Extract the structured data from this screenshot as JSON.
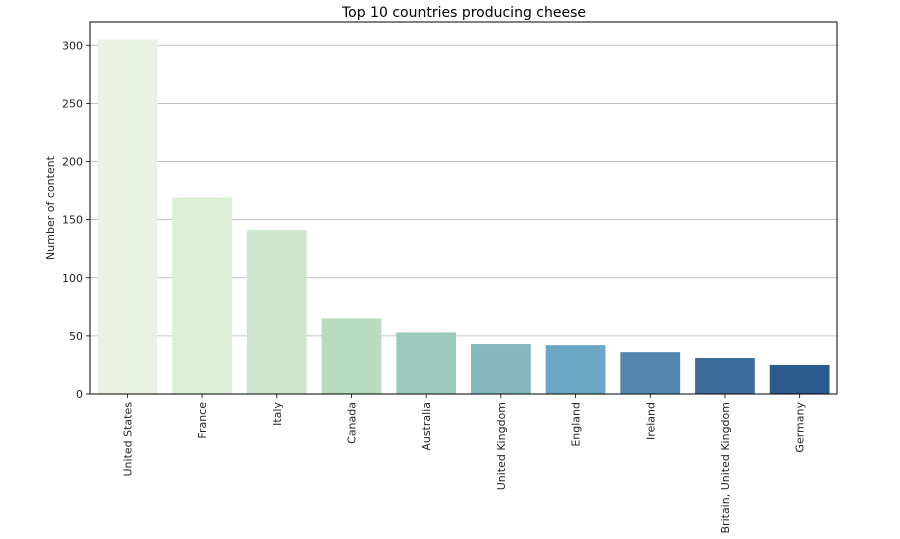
{
  "chart_data": {
    "type": "bar",
    "title": "Top 10 countries producing cheese",
    "xlabel": "",
    "ylabel": "Number of content",
    "categories": [
      "United States",
      "France",
      "Italy",
      "Canada",
      "Australia",
      "United Kingdom",
      "England",
      "Ireland",
      "Britain, United Kingdom",
      "Germany"
    ],
    "values": [
      305,
      169,
      141,
      65,
      53,
      43,
      42,
      36,
      31,
      25
    ],
    "ylim": [
      0,
      320
    ],
    "yticks": [
      0,
      50,
      100,
      150,
      200,
      250,
      300
    ],
    "grid": "y",
    "colors": [
      "#eaf3e3",
      "#ddefd7",
      "#cde6cb",
      "#b7dbbf",
      "#9bc9bb",
      "#86b7be",
      "#6aa7c5",
      "#5286ad",
      "#3c6c9a",
      "#2b5a8e"
    ]
  }
}
